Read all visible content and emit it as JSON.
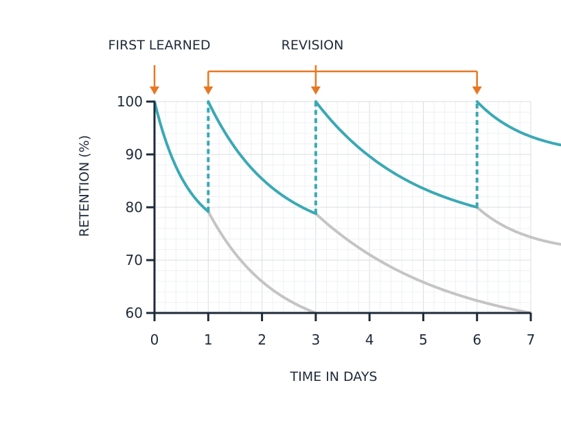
{
  "annotations": {
    "first_learned": "FIRST LEARNED",
    "revision": "REVISION"
  },
  "colors": {
    "axis": "#1e2a3a",
    "retention": "#3aa9b5",
    "forgetting": "#c4c4c4",
    "arrow": "#e87722",
    "grid_major": "#d9dde2",
    "grid_minor": "#eef0f2"
  },
  "chart_data": {
    "type": "line",
    "title": "",
    "xlabel": "TIME IN DAYS",
    "ylabel": "RETENTION (%)",
    "xlim": [
      0,
      7
    ],
    "ylim": [
      60,
      100
    ],
    "x_ticks": [
      {
        "value": 0,
        "label": "0"
      },
      {
        "value": 1,
        "label": "1"
      },
      {
        "value": 2,
        "label": "2"
      },
      {
        "value": 3,
        "label": "3"
      },
      {
        "value": 4,
        "label": "4"
      },
      {
        "value": 5,
        "label": "5"
      },
      {
        "value": 6,
        "label": "6"
      },
      {
        "value": 7,
        "label": "7"
      }
    ],
    "y_ticks": [
      {
        "value": 100,
        "label": "100"
      },
      {
        "value": 90,
        "label": "90"
      },
      {
        "value": 80,
        "label": "80"
      },
      {
        "value": 70,
        "label": "70"
      },
      {
        "value": 60,
        "label": "60"
      }
    ],
    "grid": true,
    "arrow_days": [
      0,
      1,
      3,
      6
    ],
    "series": [
      {
        "kind": "retention",
        "values": [
          [
            0,
            100
          ],
          [
            1,
            79.2
          ],
          [
            1,
            100
          ],
          [
            3,
            78.8
          ],
          [
            3,
            100
          ],
          [
            6,
            80
          ],
          [
            6,
            100
          ],
          [
            7.55,
            91.8
          ]
        ]
      },
      {
        "kind": "forgetting",
        "values": [
          [
            1,
            79.2
          ],
          [
            3,
            60
          ]
        ]
      },
      {
        "kind": "forgetting",
        "values": [
          [
            3,
            78.8
          ],
          [
            7,
            60
          ]
        ]
      },
      {
        "kind": "forgetting",
        "values": [
          [
            6,
            80
          ],
          [
            7.55,
            73
          ]
        ]
      }
    ]
  }
}
